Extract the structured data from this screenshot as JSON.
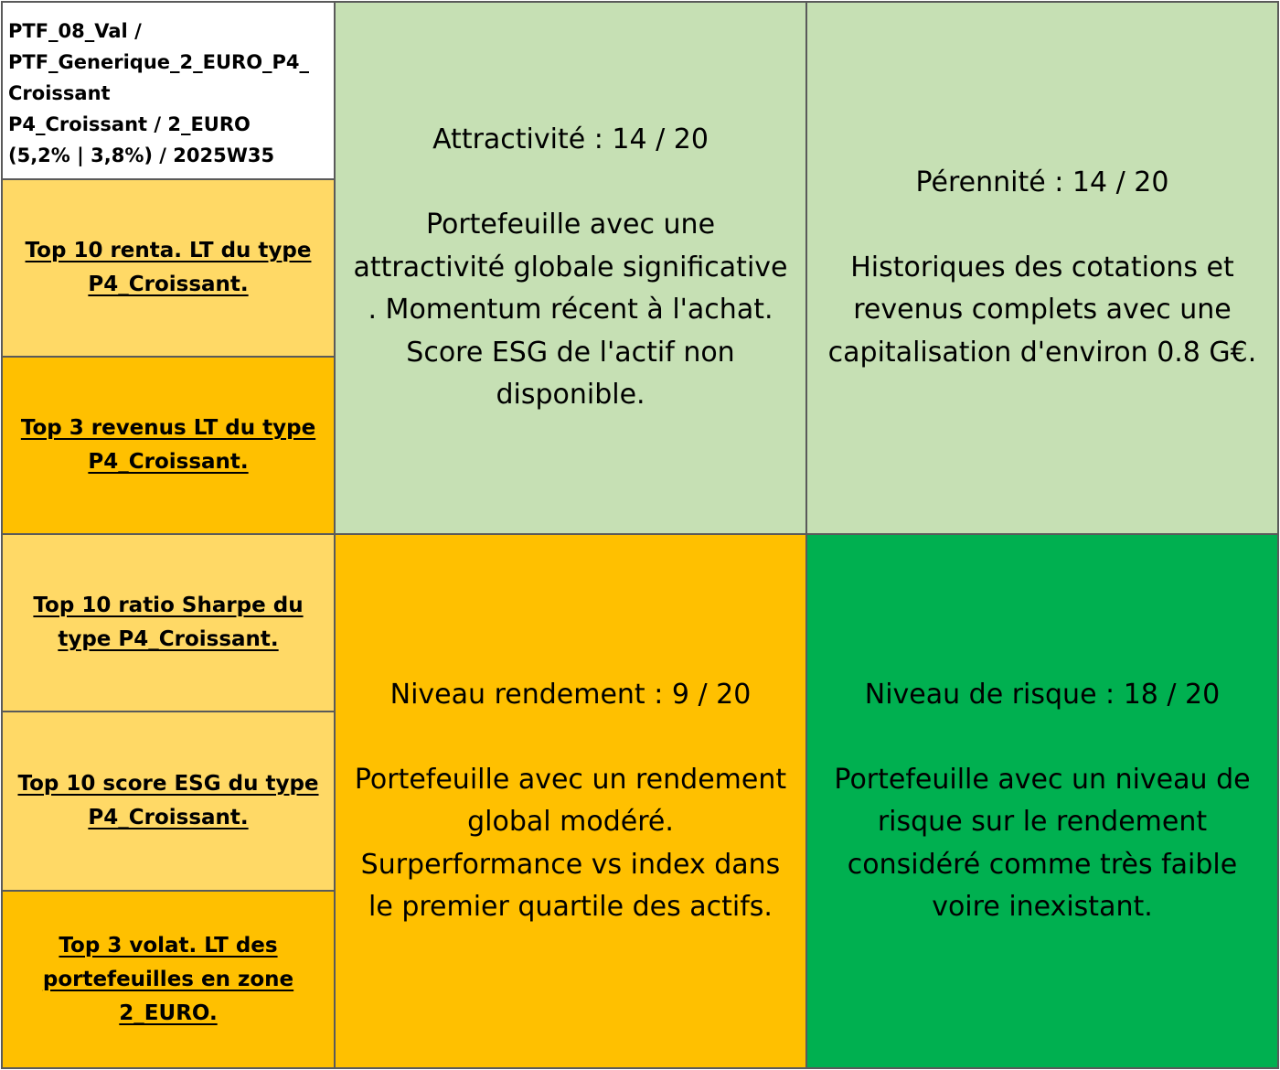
{
  "header": {
    "lines": [
      "PTF_08_Val /",
      "PTF_Generique_2_EURO_P4_",
      "Croissant",
      "P4_Croissant / 2_EURO",
      "(5,2% | 3,8%) / 2025W35"
    ]
  },
  "left_links": [
    {
      "text": "Top 10 renta. LT du type \nP4_Croissant. ",
      "color": "#ffd966"
    },
    {
      "text": "Top 3 revenus LT du type \nP4_Croissant. ",
      "color": "#ffc000"
    },
    {
      "text": "Top 10 ratio Sharpe du \ntype P4_Croissant. ",
      "color": "#ffd966"
    },
    {
      "text": "Top 10 score ESG du type \nP4_Croissant. ",
      "color": "#ffd966"
    },
    {
      "text": "Top 3 volat. LT des \nportefeuilles en zone \n2_EURO. ",
      "color": "#ffc000"
    }
  ],
  "panels": {
    "attractivite": {
      "title": "Attractivité : 14 / 20",
      "description": "Portefeuille avec une\nattractivité globale significative\n. Momentum récent à l'achat.\nScore ESG de l'actif non\ndisponible.",
      "color": "#c6e0b4"
    },
    "perennite": {
      "title": "Pérennité : 14 / 20",
      "description": "Historiques des cotations et\nrevenus complets avec une\ncapitalisation d'environ 0.8 G€.",
      "color": "#c6e0b4"
    },
    "rendement": {
      "title": "Niveau rendement : 9 / 20",
      "description": "Portefeuille avec un rendement\nglobal modéré.\nSurperformance vs index dans\nle premier quartile des actifs.",
      "color": "#ffc000"
    },
    "risque": {
      "title": "Niveau de risque : 18 / 20",
      "description": "Portefeuille avec un niveau de\nrisque sur le rendement\nconsidéré comme très faible\nvoire inexistant.",
      "color": "#00b050"
    }
  }
}
